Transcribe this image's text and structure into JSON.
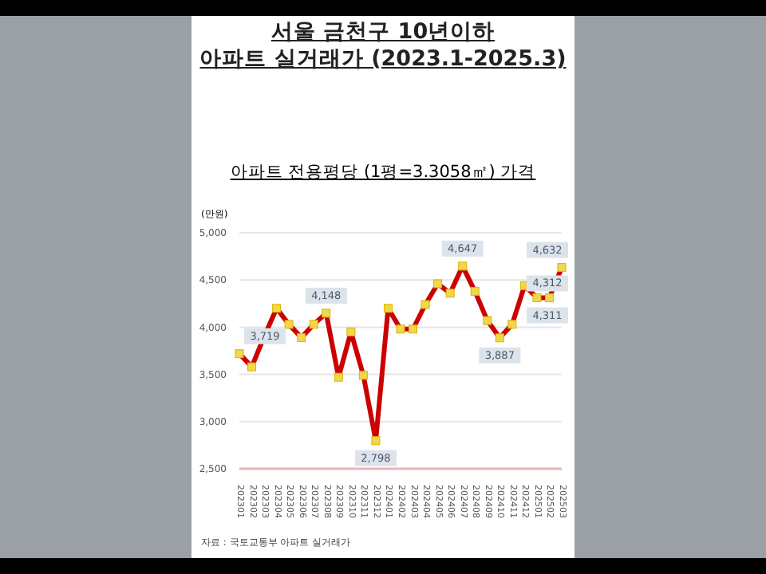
{
  "chart_data": {
    "type": "line",
    "title": "서울 금천구 10년이하\n아파트 실거래가 (2023.1-2025.3)",
    "subtitle": "아파트 전용평당 (1평=3.3058㎡) 가격",
    "ylabel": "(만원)",
    "annotations": [
      "자료 : 국토교통부 아파트 실거래가"
    ],
    "categories": [
      "202301",
      "202302",
      "202303",
      "202304",
      "202305",
      "202306",
      "202307",
      "202308",
      "202309",
      "202310",
      "202311",
      "202312",
      "202401",
      "202402",
      "202403",
      "202404",
      "202405",
      "202406",
      "202407",
      "202408",
      "202409",
      "202410",
      "202411",
      "202412",
      "202501",
      "202502",
      "202503"
    ],
    "series": [
      {
        "color": "#cc0000",
        "values": [
          3719,
          3580,
          3900,
          4200,
          4030,
          3890,
          4030,
          4148,
          3470,
          3950,
          3490,
          2798,
          4200,
          3980,
          3980,
          4240,
          4460,
          4360,
          4647,
          4380,
          4070,
          3887,
          4030,
          4440,
          4312,
          4311,
          4632
        ],
        "value_labels": [
          "3,719",
          null,
          null,
          null,
          null,
          null,
          null,
          "4,148",
          null,
          null,
          null,
          "2,798",
          null,
          null,
          null,
          null,
          null,
          null,
          "4,647",
          null,
          null,
          "3,887",
          null,
          null,
          "4,312",
          "4,311",
          "4,632"
        ]
      }
    ],
    "ylim": [
      2500,
      5000
    ],
    "yticks": [
      {
        "value": 2500,
        "label": "2,500"
      },
      {
        "value": 3000,
        "label": "3,000"
      },
      {
        "value": 3500,
        "label": "3,500"
      },
      {
        "value": 4000,
        "label": "4,000"
      },
      {
        "value": 4500,
        "label": "4,500"
      },
      {
        "value": 5000,
        "label": "5,000"
      }
    ],
    "grid": "y",
    "marker": "square"
  }
}
